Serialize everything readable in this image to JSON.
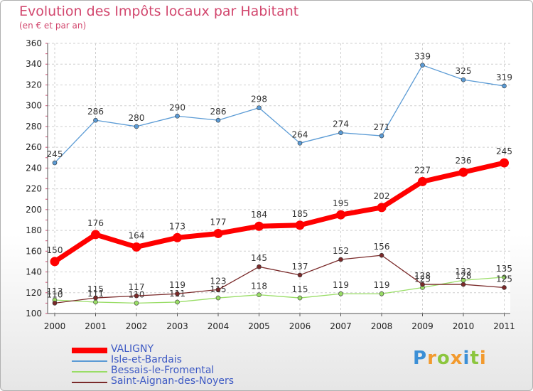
{
  "chart_data": {
    "type": "line",
    "title": "Evolution des Impôts locaux par Habitant",
    "subtitle": "(en € et par an)",
    "categories": [
      "2000",
      "2001",
      "2002",
      "2003",
      "2004",
      "2005",
      "2006",
      "2007",
      "2008",
      "2009",
      "2010",
      "2011"
    ],
    "ylim": [
      100,
      360
    ],
    "yticks": [
      100,
      120,
      140,
      160,
      180,
      200,
      220,
      240,
      260,
      280,
      300,
      320,
      340,
      360
    ],
    "grid": true,
    "legend_position": "bottom-left",
    "series": [
      {
        "name": "VALIGNY",
        "color": "#ff0000",
        "values": [
          150,
          176,
          164,
          173,
          177,
          184,
          185,
          195,
          202,
          227,
          236,
          245
        ]
      },
      {
        "name": "Isle-et-Bardais",
        "color": "#5b9bd5",
        "values": [
          245,
          286,
          280,
          290,
          286,
          298,
          264,
          274,
          271,
          339,
          325,
          319
        ]
      },
      {
        "name": "Bessais-le-Fromental",
        "color": "#99dd66",
        "values": [
          113,
          111,
          110,
          111,
          115,
          118,
          115,
          119,
          119,
          125,
          132,
          135
        ]
      },
      {
        "name": "Saint-Aignan-des-Noyers",
        "color": "#7a2a2a",
        "values": [
          110,
          115,
          117,
          119,
          123,
          145,
          137,
          152,
          156,
          128,
          128,
          125
        ]
      }
    ]
  },
  "logo": {
    "text": "Proxiti",
    "colors": [
      "#3b8fd6",
      "#f29a2e",
      "#8cc63e",
      "#f29a2e",
      "#3b8fd6",
      "#8cc63e",
      "#f29a2e"
    ]
  }
}
